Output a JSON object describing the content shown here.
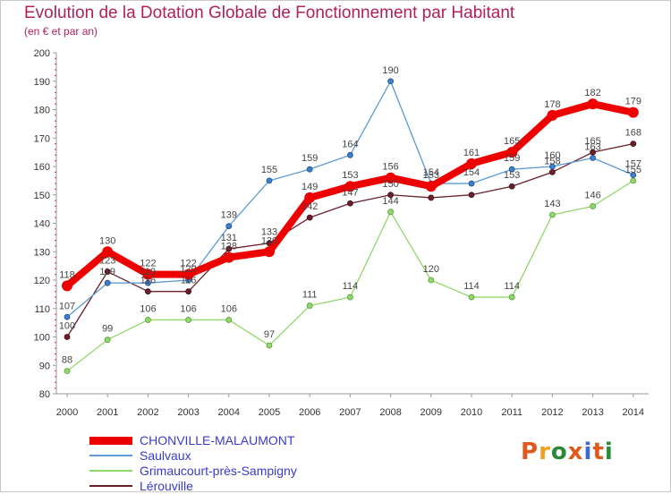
{
  "title": "Evolution de la Dotation Globale de Fonctionnement par Habitant",
  "subtitle": "(en € et par an)",
  "logo": {
    "text": "Proxiti",
    "colors": [
      "#e05a1e",
      "#f0a020",
      "#2a8a3a",
      "#e05a1e",
      "#3a6ad4",
      "#e05a1e",
      "#2a8a3a"
    ]
  },
  "chart_data": {
    "type": "line",
    "title": "Evolution de la Dotation Globale de Fonctionnement par Habitant",
    "subtitle": "(en € et par an)",
    "x": [
      2000,
      2001,
      2002,
      2003,
      2004,
      2005,
      2006,
      2007,
      2008,
      2009,
      2010,
      2011,
      2012,
      2013,
      2014
    ],
    "ylim": [
      80,
      200
    ],
    "yticks": [
      80,
      90,
      100,
      110,
      120,
      130,
      140,
      150,
      160,
      170,
      180,
      190,
      200
    ],
    "grid": false,
    "legend": "bottom-left",
    "series": [
      {
        "name": "Lérouville",
        "color": "#6b1f2a",
        "values": [
          100,
          123,
          116,
          116,
          131,
          133,
          142,
          147,
          150,
          149,
          150,
          153,
          158,
          165,
          168
        ],
        "labels": [
          "100",
          "123",
          "116",
          "116",
          "131",
          "133",
          "142",
          "147",
          "150",
          "",
          "",
          "153",
          "158",
          "165",
          "168"
        ]
      },
      {
        "name": "Grimaucourt-près-Sampigny",
        "color": "#8fd96a",
        "values": [
          88,
          99,
          106,
          106,
          106,
          97,
          111,
          114,
          144,
          120,
          114,
          114,
          143,
          146,
          155
        ],
        "labels": [
          "88",
          "99",
          "106",
          "106",
          "106",
          "97",
          "111",
          "114",
          "144",
          "120",
          "114",
          "114",
          "143",
          "146",
          "155"
        ]
      },
      {
        "name": "Saulvaux",
        "color": "#5b9bd5",
        "values": [
          107,
          119,
          119,
          120,
          139,
          155,
          159,
          164,
          190,
          154,
          154,
          159,
          160,
          163,
          157
        ],
        "labels": [
          "107",
          "119",
          "119",
          "120",
          "139",
          "155",
          "159",
          "164",
          "190",
          "154",
          "154",
          "159",
          "160",
          "163",
          "157"
        ]
      },
      {
        "name": "CHONVILLE-MALAUMONT",
        "color": "#ee0000",
        "values": [
          118,
          130,
          122,
          122,
          128,
          130,
          149,
          153,
          156,
          153,
          161,
          165,
          178,
          182,
          179
        ],
        "labels": [
          "118",
          "130",
          "122",
          "122",
          "128",
          "130",
          "149",
          "153",
          "156",
          "153",
          "161",
          "165",
          "178",
          "182",
          "179"
        ]
      }
    ],
    "legend_order": [
      "CHONVILLE-MALAUMONT",
      "Saulvaux",
      "Grimaucourt-près-Sampigny",
      "Lérouville"
    ]
  }
}
